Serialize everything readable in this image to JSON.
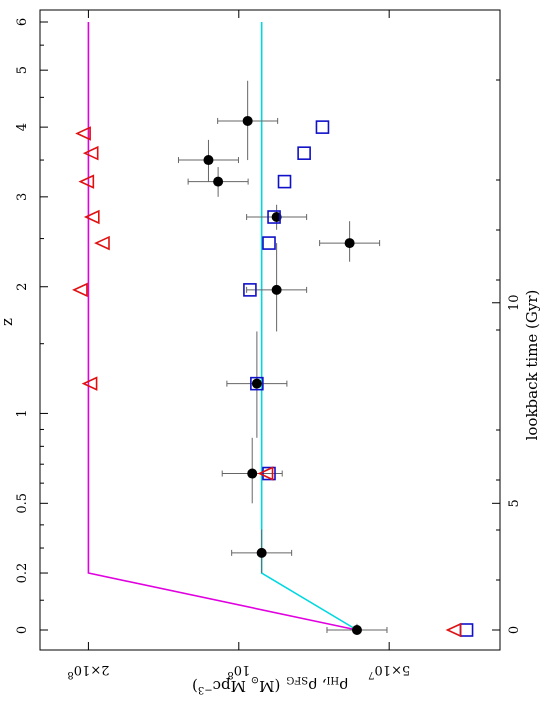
{
  "chart_data": {
    "type": "scatter",
    "orientation": "rotated-90-clockwise",
    "title": "",
    "x_axis_bottom": {
      "label": "z",
      "scale": "log(1+z)",
      "ticks": [
        {
          "value": 0,
          "label": "0"
        },
        {
          "value": 0.2,
          "label": "0.2"
        },
        {
          "value": 0.5,
          "label": "0.5"
        },
        {
          "value": 1,
          "label": "1"
        },
        {
          "value": 2,
          "label": "2"
        },
        {
          "value": 3,
          "label": "3"
        },
        {
          "value": 4,
          "label": "4"
        },
        {
          "value": 5,
          "label": "5"
        },
        {
          "value": 6,
          "label": "6"
        }
      ]
    },
    "x_axis_top": {
      "label": "lookback time (Gyr)",
      "ticks": [
        {
          "value": 0,
          "label": "0"
        },
        {
          "value": 5,
          "label": "5"
        },
        {
          "value": 10,
          "label": "10"
        }
      ]
    },
    "y_axis": {
      "label_main": "ρ",
      "label_sub1": "HI",
      "label_sep": ", ρ",
      "label_sub2": "SFG",
      "label_units_pre": "(M",
      "label_units_sun": "⊙",
      "label_units_mid": " Mpc",
      "label_units_exp": "−3",
      "label_units_post": ")",
      "scale": "log",
      "ylim": [
        30000000.0,
        250000000.0
      ],
      "ticks": [
        {
          "value": 50000000.0,
          "mant": "5×10",
          "exp": "7"
        },
        {
          "value": 100000000.0,
          "mant": "10",
          "exp": "8"
        },
        {
          "value": 200000000.0,
          "mant": "2×10",
          "exp": "8"
        }
      ]
    },
    "series": [
      {
        "marker": "filled-circle",
        "color": "#000000",
        "points": [
          {
            "z": 0.0,
            "y": 58000000.0,
            "xerr": [
              0.0,
              0.02
            ]
          },
          {
            "z": 0.28,
            "y": 90000000.0,
            "xerr": [
              0.2,
              0.38
            ]
          },
          {
            "z": 0.65,
            "y": 94000000.0,
            "xerr": [
              0.5,
              0.85
            ]
          },
          {
            "z": 1.2,
            "y": 92000000.0,
            "xerr": [
              0.85,
              1.6
            ]
          },
          {
            "z": 1.97,
            "y": 84000000.0,
            "xerr": [
              1.6,
              2.45
            ]
          },
          {
            "z": 2.45,
            "y": 60000000.0,
            "xerr": [
              2.25,
              2.7
            ]
          },
          {
            "z": 2.75,
            "y": 84000000.0,
            "xerr": [
              2.6,
              2.9
            ]
          },
          {
            "z": 3.2,
            "y": 110000000.0,
            "xerr": [
              3.0,
              3.4
            ]
          },
          {
            "z": 3.5,
            "y": 115000000.0,
            "xerr": [
              3.2,
              3.8
            ]
          },
          {
            "z": 4.1,
            "y": 96000000.0,
            "xerr": [
              3.5,
              4.8
            ]
          }
        ]
      },
      {
        "marker": "open-square",
        "color": "#1010c8",
        "points": [
          {
            "z": 0.0,
            "y": 35000000.0
          },
          {
            "z": 0.65,
            "y": 87000000.0
          },
          {
            "z": 1.2,
            "y": 92000000.0
          },
          {
            "z": 1.97,
            "y": 95000000.0
          },
          {
            "z": 2.45,
            "y": 87000000.0
          },
          {
            "z": 2.75,
            "y": 85000000.0
          },
          {
            "z": 3.2,
            "y": 81000000.0
          },
          {
            "z": 3.6,
            "y": 74000000.0
          },
          {
            "z": 4.0,
            "y": 68000000.0
          }
        ]
      },
      {
        "marker": "open-triangle-left",
        "color": "#e01010",
        "points": [
          {
            "z": 0.0,
            "y": 37000000.0
          },
          {
            "z": 0.65,
            "y": 88000000.0
          },
          {
            "z": 1.2,
            "y": 198000000.0
          },
          {
            "z": 1.97,
            "y": 207000000.0
          },
          {
            "z": 2.45,
            "y": 187000000.0
          },
          {
            "z": 2.75,
            "y": 196000000.0
          },
          {
            "z": 3.2,
            "y": 201000000.0
          },
          {
            "z": 3.6,
            "y": 197000000.0
          },
          {
            "z": 3.9,
            "y": 204000000.0
          }
        ]
      }
    ],
    "lines": [
      {
        "color": "#e000e0",
        "points": [
          {
            "z": 0.0,
            "y": 58000000.0
          },
          {
            "z": 0.2,
            "y": 200000000.0
          },
          {
            "z": 6.0,
            "y": 200000000.0
          }
        ]
      },
      {
        "color": "#00d8e0",
        "points": [
          {
            "z": 0.0,
            "y": 58000000.0
          },
          {
            "z": 0.2,
            "y": 90000000.0
          },
          {
            "z": 6.0,
            "y": 90000000.0
          }
        ]
      }
    ]
  }
}
